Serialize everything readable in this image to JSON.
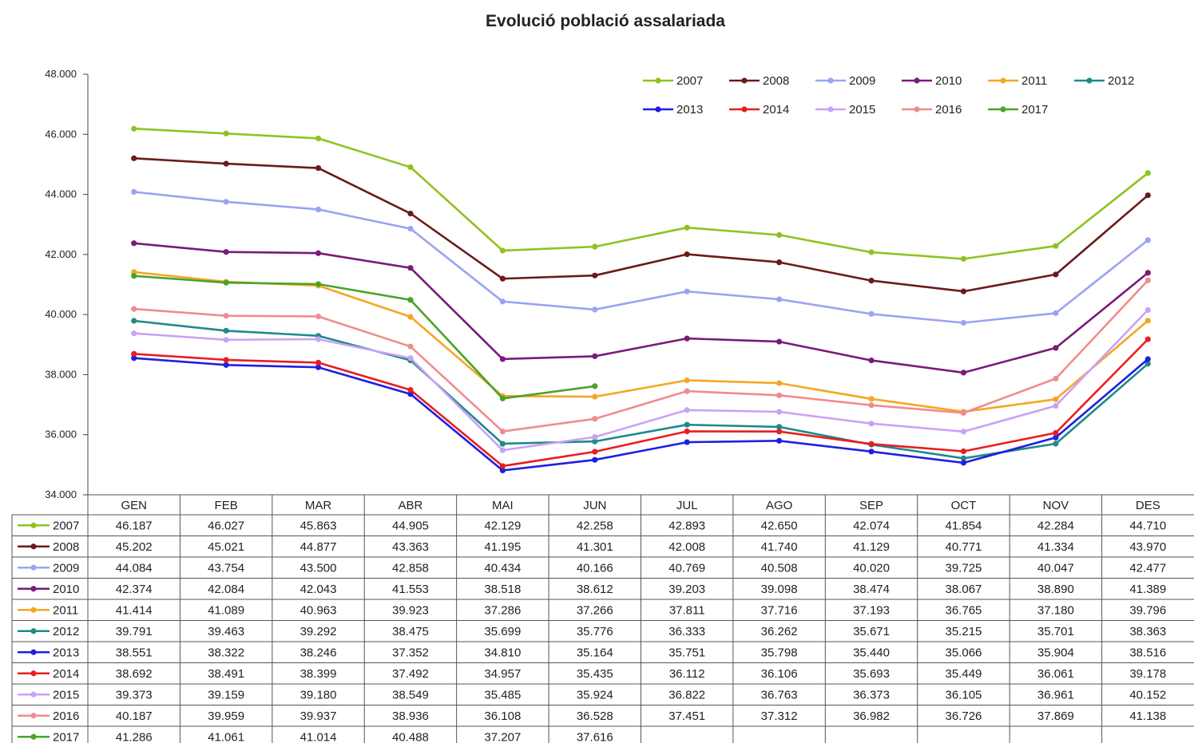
{
  "chart_data": {
    "type": "line",
    "title": "Evolució població assalariada",
    "categories": [
      "GEN",
      "FEB",
      "MAR",
      "ABR",
      "MAI",
      "JUN",
      "JUL",
      "AGO",
      "SEP",
      "OCT",
      "NOV",
      "DES"
    ],
    "ylim": [
      34000,
      48000
    ],
    "yticks": [
      34000,
      36000,
      38000,
      40000,
      42000,
      44000,
      46000,
      48000
    ],
    "ytick_labels": [
      "34.000",
      "36.000",
      "38.000",
      "40.000",
      "42.000",
      "44.000",
      "46.000",
      "48.000"
    ],
    "legend_position": "top-right",
    "grid": false,
    "data_table": true,
    "series": [
      {
        "name": "2007",
        "color": "#8fc31f",
        "values": [
          46187,
          46027,
          45863,
          44905,
          42129,
          42258,
          42893,
          42650,
          42074,
          41854,
          42284,
          44710
        ],
        "labels": [
          "46.187",
          "46.027",
          "45.863",
          "44.905",
          "42.129",
          "42.258",
          "42.893",
          "42.650",
          "42.074",
          "41.854",
          "42.284",
          "44.710"
        ]
      },
      {
        "name": "2008",
        "color": "#6b1a1a",
        "values": [
          45202,
          45021,
          44877,
          43363,
          41195,
          41301,
          42008,
          41740,
          41129,
          40771,
          41334,
          43970
        ],
        "labels": [
          "45.202",
          "45.021",
          "44.877",
          "43.363",
          "41.195",
          "41.301",
          "42.008",
          "41.740",
          "41.129",
          "40.771",
          "41.334",
          "43.970"
        ]
      },
      {
        "name": "2009",
        "color": "#9aa3f2",
        "values": [
          44084,
          43754,
          43500,
          42858,
          40434,
          40166,
          40769,
          40508,
          40020,
          39725,
          40047,
          42477
        ],
        "labels": [
          "44.084",
          "43.754",
          "43.500",
          "42.858",
          "40.434",
          "40.166",
          "40.769",
          "40.508",
          "40.020",
          "39.725",
          "40.047",
          "42.477"
        ]
      },
      {
        "name": "2010",
        "color": "#7a1a7a",
        "values": [
          42374,
          42084,
          42043,
          41553,
          38518,
          38612,
          39203,
          39098,
          38474,
          38067,
          38890,
          41389
        ],
        "labels": [
          "42.374",
          "42.084",
          "42.043",
          "41.553",
          "38.518",
          "38.612",
          "39.203",
          "39.098",
          "38.474",
          "38.067",
          "38.890",
          "41.389"
        ]
      },
      {
        "name": "2011",
        "color": "#f5a623",
        "values": [
          41414,
          41089,
          40963,
          39923,
          37286,
          37266,
          37811,
          37716,
          37193,
          36765,
          37180,
          39796
        ],
        "labels": [
          "41.414",
          "41.089",
          "40.963",
          "39.923",
          "37.286",
          "37.266",
          "37.811",
          "37.716",
          "37.193",
          "36.765",
          "37.180",
          "39.796"
        ]
      },
      {
        "name": "2012",
        "color": "#1e8a8a",
        "values": [
          39791,
          39463,
          39292,
          38475,
          35699,
          35776,
          36333,
          36262,
          35671,
          35215,
          35701,
          38363
        ],
        "labels": [
          "39.791",
          "39.463",
          "39.292",
          "38.475",
          "35.699",
          "35.776",
          "36.333",
          "36.262",
          "35.671",
          "35.215",
          "35.701",
          "38.363"
        ]
      },
      {
        "name": "2013",
        "color": "#1f1fe0",
        "values": [
          38551,
          38322,
          38246,
          37352,
          34810,
          35164,
          35751,
          35798,
          35440,
          35066,
          35904,
          38516
        ],
        "labels": [
          "38.551",
          "38.322",
          "38.246",
          "37.352",
          "34.810",
          "35.164",
          "35.751",
          "35.798",
          "35.440",
          "35.066",
          "35.904",
          "38.516"
        ]
      },
      {
        "name": "2014",
        "color": "#e81e1e",
        "values": [
          38692,
          38491,
          38399,
          37492,
          34957,
          35435,
          36112,
          36106,
          35693,
          35449,
          36061,
          39178
        ],
        "labels": [
          "38.692",
          "38.491",
          "38.399",
          "37.492",
          "34.957",
          "35.435",
          "36.112",
          "36.106",
          "35.693",
          "35.449",
          "36.061",
          "39.178"
        ]
      },
      {
        "name": "2015",
        "color": "#c9a2f5",
        "values": [
          39373,
          39159,
          39180,
          38549,
          35485,
          35924,
          36822,
          36763,
          36373,
          36105,
          36961,
          40152
        ],
        "labels": [
          "39.373",
          "39.159",
          "39.180",
          "38.549",
          "35.485",
          "35.924",
          "36.822",
          "36.763",
          "36.373",
          "36.105",
          "36.961",
          "40.152"
        ]
      },
      {
        "name": "2016",
        "color": "#f08c8c",
        "values": [
          40187,
          39959,
          39937,
          38936,
          36108,
          36528,
          37451,
          37312,
          36982,
          36726,
          37869,
          41138
        ],
        "labels": [
          "40.187",
          "39.959",
          "39.937",
          "38.936",
          "36.108",
          "36.528",
          "37.451",
          "37.312",
          "36.982",
          "36.726",
          "37.869",
          "41.138"
        ]
      },
      {
        "name": "2017",
        "color": "#4aa32a",
        "values": [
          41286,
          41061,
          41014,
          40488,
          37207,
          37616,
          null,
          null,
          null,
          null,
          null,
          null
        ],
        "labels": [
          "41.286",
          "41.061",
          "41.014",
          "40.488",
          "37.207",
          "37.616",
          "",
          "",
          "",
          "",
          "",
          ""
        ]
      }
    ]
  }
}
